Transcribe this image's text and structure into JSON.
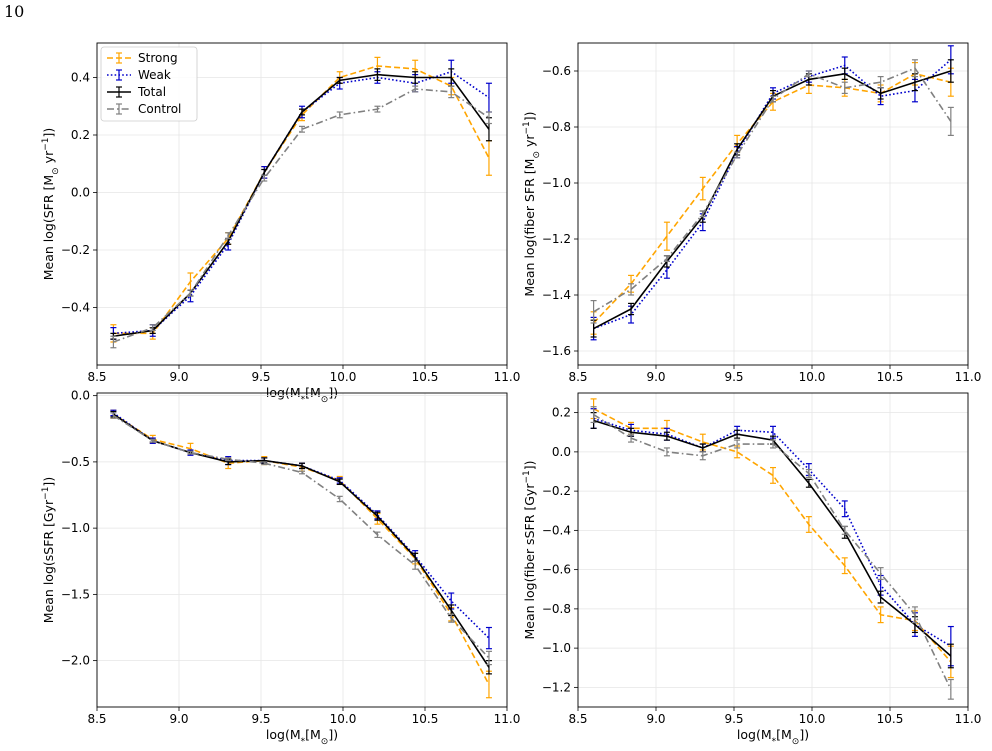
{
  "page": {
    "number": "10"
  },
  "chart_data": [
    {
      "type": "line",
      "xlabel": "log(M_*[M_⊙])",
      "ylabel": "Mean log(SFR [M_⊙ yr^{-1}])",
      "xlim": [
        8.5,
        11.0
      ],
      "ylim": [
        -0.6,
        0.52
      ],
      "xticks": [
        8.5,
        9.0,
        9.5,
        10.0,
        10.5,
        11.0
      ],
      "xtick_labels": [
        "8.5",
        "9.0",
        "9.5",
        "10.0",
        "10.5",
        "11.0"
      ],
      "yticks": [
        -0.4,
        -0.2,
        0.0,
        0.2,
        0.4
      ],
      "ytick_labels": [
        "−0.4",
        "−0.2",
        "0.0",
        "0.2",
        "0.4"
      ],
      "grid": true,
      "legend": {
        "placement": "top-left",
        "entries": [
          "Strong",
          "Weak",
          "Total",
          "Control"
        ]
      },
      "x": [
        8.6,
        8.84,
        9.07,
        9.3,
        9.52,
        9.75,
        9.98,
        10.21,
        10.44,
        10.66,
        10.89
      ],
      "series": [
        {
          "name": "Strong",
          "color": "#FFA500",
          "dash": "dashed",
          "values": [
            -0.49,
            -0.49,
            -0.31,
            -0.16,
            0.07,
            0.27,
            0.4,
            0.44,
            0.43,
            0.37,
            0.12
          ],
          "errors": [
            0.03,
            0.02,
            0.03,
            0.02,
            0.02,
            0.02,
            0.02,
            0.03,
            0.03,
            0.03,
            0.06
          ]
        },
        {
          "name": "Weak",
          "color": "#0000CC",
          "dash": "dotted",
          "values": [
            -0.49,
            -0.48,
            -0.36,
            -0.18,
            0.07,
            0.28,
            0.38,
            0.4,
            0.38,
            0.42,
            0.33
          ],
          "errors": [
            0.02,
            0.02,
            0.02,
            0.02,
            0.02,
            0.02,
            0.02,
            0.02,
            0.03,
            0.04,
            0.05
          ]
        },
        {
          "name": "Total",
          "color": "#000000",
          "dash": "solid",
          "values": [
            -0.5,
            -0.48,
            -0.35,
            -0.17,
            0.07,
            0.28,
            0.39,
            0.41,
            0.4,
            0.4,
            0.22
          ],
          "errors": [
            0.01,
            0.01,
            0.01,
            0.01,
            0.01,
            0.01,
            0.01,
            0.02,
            0.02,
            0.03,
            0.04
          ]
        },
        {
          "name": "Control",
          "color": "#808080",
          "dash": "dashdot",
          "values": [
            -0.52,
            -0.47,
            -0.35,
            -0.15,
            0.05,
            0.22,
            0.27,
            0.29,
            0.36,
            0.35,
            0.26
          ],
          "errors": [
            0.02,
            0.01,
            0.01,
            0.01,
            0.01,
            0.01,
            0.01,
            0.01,
            0.01,
            0.02,
            0.02
          ]
        }
      ]
    },
    {
      "type": "line",
      "xlabel": "",
      "ylabel": "Mean log(fiber SFR [M_⊙ yr^{-1}])",
      "xlim": [
        8.5,
        11.0
      ],
      "ylim": [
        -1.65,
        -0.5
      ],
      "xticks": [
        8.5,
        9.0,
        9.5,
        10.0,
        10.5,
        11.0
      ],
      "xtick_labels": [
        "8.5",
        "9.0",
        "9.5",
        "10.0",
        "10.5",
        "11.0"
      ],
      "yticks": [
        -1.6,
        -1.4,
        -1.2,
        -1.0,
        -0.8,
        -0.6
      ],
      "ytick_labels": [
        "−1.6",
        "−1.4",
        "−1.2",
        "−1.0",
        "−0.8",
        "−0.6"
      ],
      "grid": true,
      "x": [
        8.6,
        8.84,
        9.07,
        9.3,
        9.52,
        9.75,
        9.98,
        10.21,
        10.44,
        10.66,
        10.89
      ],
      "series": [
        {
          "name": "Strong",
          "color": "#FFA500",
          "dash": "dashed",
          "values": [
            -1.5,
            -1.36,
            -1.19,
            -1.02,
            -0.86,
            -0.71,
            -0.65,
            -0.66,
            -0.68,
            -0.61,
            -0.64
          ],
          "errors": [
            0.04,
            0.03,
            0.05,
            0.04,
            0.03,
            0.03,
            0.03,
            0.03,
            0.03,
            0.04,
            0.05
          ]
        },
        {
          "name": "Weak",
          "color": "#0000CC",
          "dash": "dotted",
          "values": [
            -1.52,
            -1.47,
            -1.31,
            -1.14,
            -0.89,
            -0.68,
            -0.62,
            -0.58,
            -0.69,
            -0.67,
            -0.56
          ],
          "errors": [
            0.04,
            0.03,
            0.03,
            0.03,
            0.02,
            0.02,
            0.02,
            0.03,
            0.03,
            0.04,
            0.05
          ]
        },
        {
          "name": "Total",
          "color": "#000000",
          "dash": "solid",
          "values": [
            -1.52,
            -1.45,
            -1.28,
            -1.12,
            -0.88,
            -0.69,
            -0.63,
            -0.61,
            -0.68,
            -0.64,
            -0.6
          ],
          "errors": [
            0.03,
            0.02,
            0.02,
            0.02,
            0.02,
            0.02,
            0.02,
            0.02,
            0.02,
            0.03,
            0.04
          ]
        },
        {
          "name": "Control",
          "color": "#808080",
          "dash": "dashdot",
          "values": [
            -1.46,
            -1.38,
            -1.27,
            -1.11,
            -0.9,
            -0.7,
            -0.61,
            -0.66,
            -0.64,
            -0.59,
            -0.78
          ],
          "errors": [
            0.04,
            0.02,
            0.01,
            0.01,
            0.01,
            0.01,
            0.01,
            0.02,
            0.02,
            0.03,
            0.05
          ]
        }
      ]
    },
    {
      "type": "line",
      "xlabel": "log(M_*[M_⊙])",
      "ylabel": "Mean log(sSFR [Gyr^{-1}])",
      "xlim": [
        8.5,
        11.0
      ],
      "ylim": [
        -2.35,
        0.02
      ],
      "xticks": [
        8.5,
        9.0,
        9.5,
        10.0,
        10.5,
        11.0
      ],
      "xtick_labels": [
        "8.5",
        "9.0",
        "9.5",
        "10.0",
        "10.5",
        "11.0"
      ],
      "yticks": [
        -2.0,
        -1.5,
        -1.0,
        -0.5,
        0.0
      ],
      "ytick_labels": [
        "−2.0",
        "−1.5",
        "−1.0",
        "−0.5",
        "0.0"
      ],
      "grid": true,
      "x": [
        8.6,
        8.84,
        9.07,
        9.3,
        9.52,
        9.75,
        9.98,
        10.21,
        10.44,
        10.66,
        10.89
      ],
      "series": [
        {
          "name": "Strong",
          "color": "#FFA500",
          "dash": "dashed",
          "values": [
            -0.14,
            -0.33,
            -0.4,
            -0.51,
            -0.49,
            -0.54,
            -0.64,
            -0.93,
            -1.23,
            -1.65,
            -2.18
          ],
          "errors": [
            0.03,
            0.03,
            0.04,
            0.04,
            0.03,
            0.03,
            0.03,
            0.04,
            0.04,
            0.05,
            0.1
          ]
        },
        {
          "name": "Weak",
          "color": "#0000CC",
          "dash": "dotted",
          "values": [
            -0.13,
            -0.34,
            -0.43,
            -0.49,
            -0.49,
            -0.53,
            -0.64,
            -0.9,
            -1.21,
            -1.55,
            -1.83
          ],
          "errors": [
            0.02,
            0.02,
            0.02,
            0.03,
            0.02,
            0.02,
            0.02,
            0.03,
            0.04,
            0.06,
            0.08
          ]
        },
        {
          "name": "Total",
          "color": "#000000",
          "dash": "solid",
          "values": [
            -0.14,
            -0.34,
            -0.43,
            -0.5,
            -0.49,
            -0.53,
            -0.65,
            -0.91,
            -1.22,
            -1.62,
            -2.05
          ],
          "errors": [
            0.02,
            0.01,
            0.01,
            0.02,
            0.02,
            0.02,
            0.02,
            0.03,
            0.03,
            0.04,
            0.05
          ]
        },
        {
          "name": "Control",
          "color": "#808080",
          "dash": "dashdot",
          "values": [
            -0.15,
            -0.34,
            -0.43,
            -0.48,
            -0.51,
            -0.58,
            -0.78,
            -1.05,
            -1.28,
            -1.68,
            -1.98
          ],
          "errors": [
            0.02,
            0.01,
            0.01,
            0.01,
            0.01,
            0.01,
            0.02,
            0.02,
            0.03,
            0.03,
            0.05
          ]
        }
      ]
    },
    {
      "type": "line",
      "xlabel": "log(M_*[M_⊙])",
      "ylabel": "Mean log(fiber sSFR [Gyr^{-1}])",
      "xlim": [
        8.5,
        11.0
      ],
      "ylim": [
        -1.3,
        0.3
      ],
      "xticks": [
        8.5,
        9.0,
        9.5,
        10.0,
        10.5,
        11.0
      ],
      "xtick_labels": [
        "8.5",
        "9.0",
        "9.5",
        "10.0",
        "10.5",
        "11.0"
      ],
      "yticks": [
        -1.2,
        -1.0,
        -0.8,
        -0.6,
        -0.4,
        -0.2,
        0.0,
        0.2
      ],
      "ytick_labels": [
        "−1.2",
        "−1.0",
        "−0.8",
        "−0.6",
        "−0.4",
        "−0.2",
        "0.0",
        "0.2"
      ],
      "grid": true,
      "x": [
        8.6,
        8.84,
        9.07,
        9.3,
        9.52,
        9.75,
        9.98,
        10.21,
        10.44,
        10.66,
        10.89
      ],
      "series": [
        {
          "name": "Strong",
          "color": "#FFA500",
          "dash": "dashed",
          "values": [
            0.22,
            0.12,
            0.12,
            0.05,
            0.0,
            -0.12,
            -0.37,
            -0.58,
            -0.83,
            -0.86,
            -1.07
          ],
          "errors": [
            0.05,
            0.03,
            0.04,
            0.04,
            0.03,
            0.04,
            0.04,
            0.04,
            0.04,
            0.05,
            0.08
          ]
        },
        {
          "name": "Weak",
          "color": "#0000CC",
          "dash": "dotted",
          "values": [
            0.17,
            0.11,
            0.09,
            0.02,
            0.11,
            0.1,
            -0.09,
            -0.29,
            -0.68,
            -0.88,
            -0.99
          ],
          "errors": [
            0.05,
            0.03,
            0.03,
            0.02,
            0.02,
            0.03,
            0.03,
            0.04,
            0.05,
            0.06,
            0.1
          ]
        },
        {
          "name": "Total",
          "color": "#000000",
          "dash": "solid",
          "values": [
            0.16,
            0.1,
            0.08,
            0.02,
            0.09,
            0.06,
            -0.16,
            -0.41,
            -0.74,
            -0.88,
            -1.04
          ],
          "errors": [
            0.04,
            0.02,
            0.02,
            0.02,
            0.02,
            0.02,
            0.02,
            0.03,
            0.03,
            0.04,
            0.06
          ]
        },
        {
          "name": "Control",
          "color": "#808080",
          "dash": "dashdot",
          "values": [
            0.19,
            0.07,
            0.0,
            -0.02,
            0.04,
            0.04,
            -0.11,
            -0.4,
            -0.62,
            -0.83,
            -1.21
          ],
          "errors": [
            0.04,
            0.02,
            0.02,
            0.02,
            0.02,
            0.02,
            0.02,
            0.02,
            0.03,
            0.04,
            0.05
          ]
        }
      ]
    }
  ]
}
